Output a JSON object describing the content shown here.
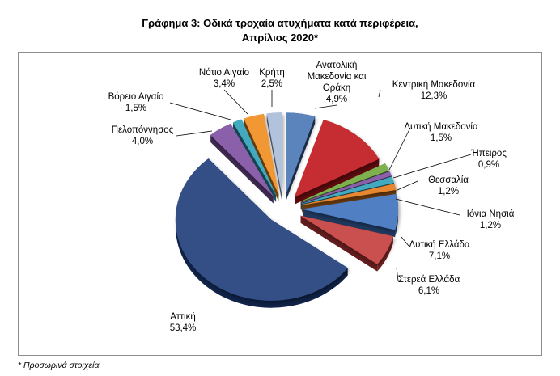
{
  "chart_data": {
    "type": "pie",
    "title_line1": "Γράφημα 3: Οδικά τροχαία ατυχήματα κατά περιφέρεια,",
    "title_line2": "Απρίλιος 2020*",
    "unit": "%",
    "slices": [
      {
        "name": "Ανατολική Μακεδονία και Θράκη",
        "label_lines": [
          "Ανατολική",
          "Μακεδονία και",
          "Θράκη"
        ],
        "value": 4.9,
        "value_label": "4,9%",
        "color": "#4a76b6"
      },
      {
        "name": "Κεντρική Μακεδονία",
        "label_lines": [
          "Κεντρική Μακεδονία"
        ],
        "value": 12.3,
        "value_label": "12,3%",
        "color": "#c0161b"
      },
      {
        "name": "Δυτική Μακεδονία",
        "label_lines": [
          "Δυτική Μακεδονία"
        ],
        "value": 1.5,
        "value_label": "1,5%",
        "color": "#6fa83c"
      },
      {
        "name": "Ήπειρος",
        "label_lines": [
          "Ήπειρος"
        ],
        "value": 0.9,
        "value_label": "0,9%",
        "color": "#7b4fa0"
      },
      {
        "name": "Θεσσαλία",
        "label_lines": [
          "Θεσσαλία"
        ],
        "value": 1.2,
        "value_label": "1,2%",
        "color": "#2fa0b8"
      },
      {
        "name": "Ιόνια Νησιά",
        "label_lines": [
          "Ιόνια Νησιά"
        ],
        "value": 1.2,
        "value_label": "1,2%",
        "color": "#e27a1c"
      },
      {
        "name": "Δυτική Ελλάδα",
        "label_lines": [
          "Δυτική Ελλάδα"
        ],
        "value": 7.1,
        "value_label": "7,1%",
        "color": "#3e71bd"
      },
      {
        "name": "Στερεά Ελλάδα",
        "label_lines": [
          "Στερεά Ελλάδα"
        ],
        "value": 6.1,
        "value_label": "6,1%",
        "color": "#c43a3a"
      },
      {
        "name": "Αττική",
        "label_lines": [
          "Αττική"
        ],
        "value": 53.4,
        "value_label": "53,4%",
        "color": "#1b3a78"
      },
      {
        "name": "Πελοπόννησος",
        "label_lines": [
          "Πελοπόννησος"
        ],
        "value": 4.0,
        "value_label": "4,0%",
        "color": "#7b4fa0"
      },
      {
        "name": "Βόρειο Αιγαίο",
        "label_lines": [
          "Βόρειο Αιγαίο"
        ],
        "value": 1.5,
        "value_label": "1,5%",
        "color": "#2fa0b8"
      },
      {
        "name": "Νότιο Αιγαίο",
        "label_lines": [
          "Νότιο Αιγαίο"
        ],
        "value": 3.4,
        "value_label": "3,4%",
        "color": "#f08c1c"
      },
      {
        "name": "Κρήτη",
        "label_lines": [
          "Κρήτη"
        ],
        "value": 2.5,
        "value_label": "2,5%",
        "color": "#a9bcd9"
      }
    ],
    "legend": "none",
    "style": "3d-exploded-pie"
  },
  "footnote": "* Προσωρινά στοιχεία"
}
